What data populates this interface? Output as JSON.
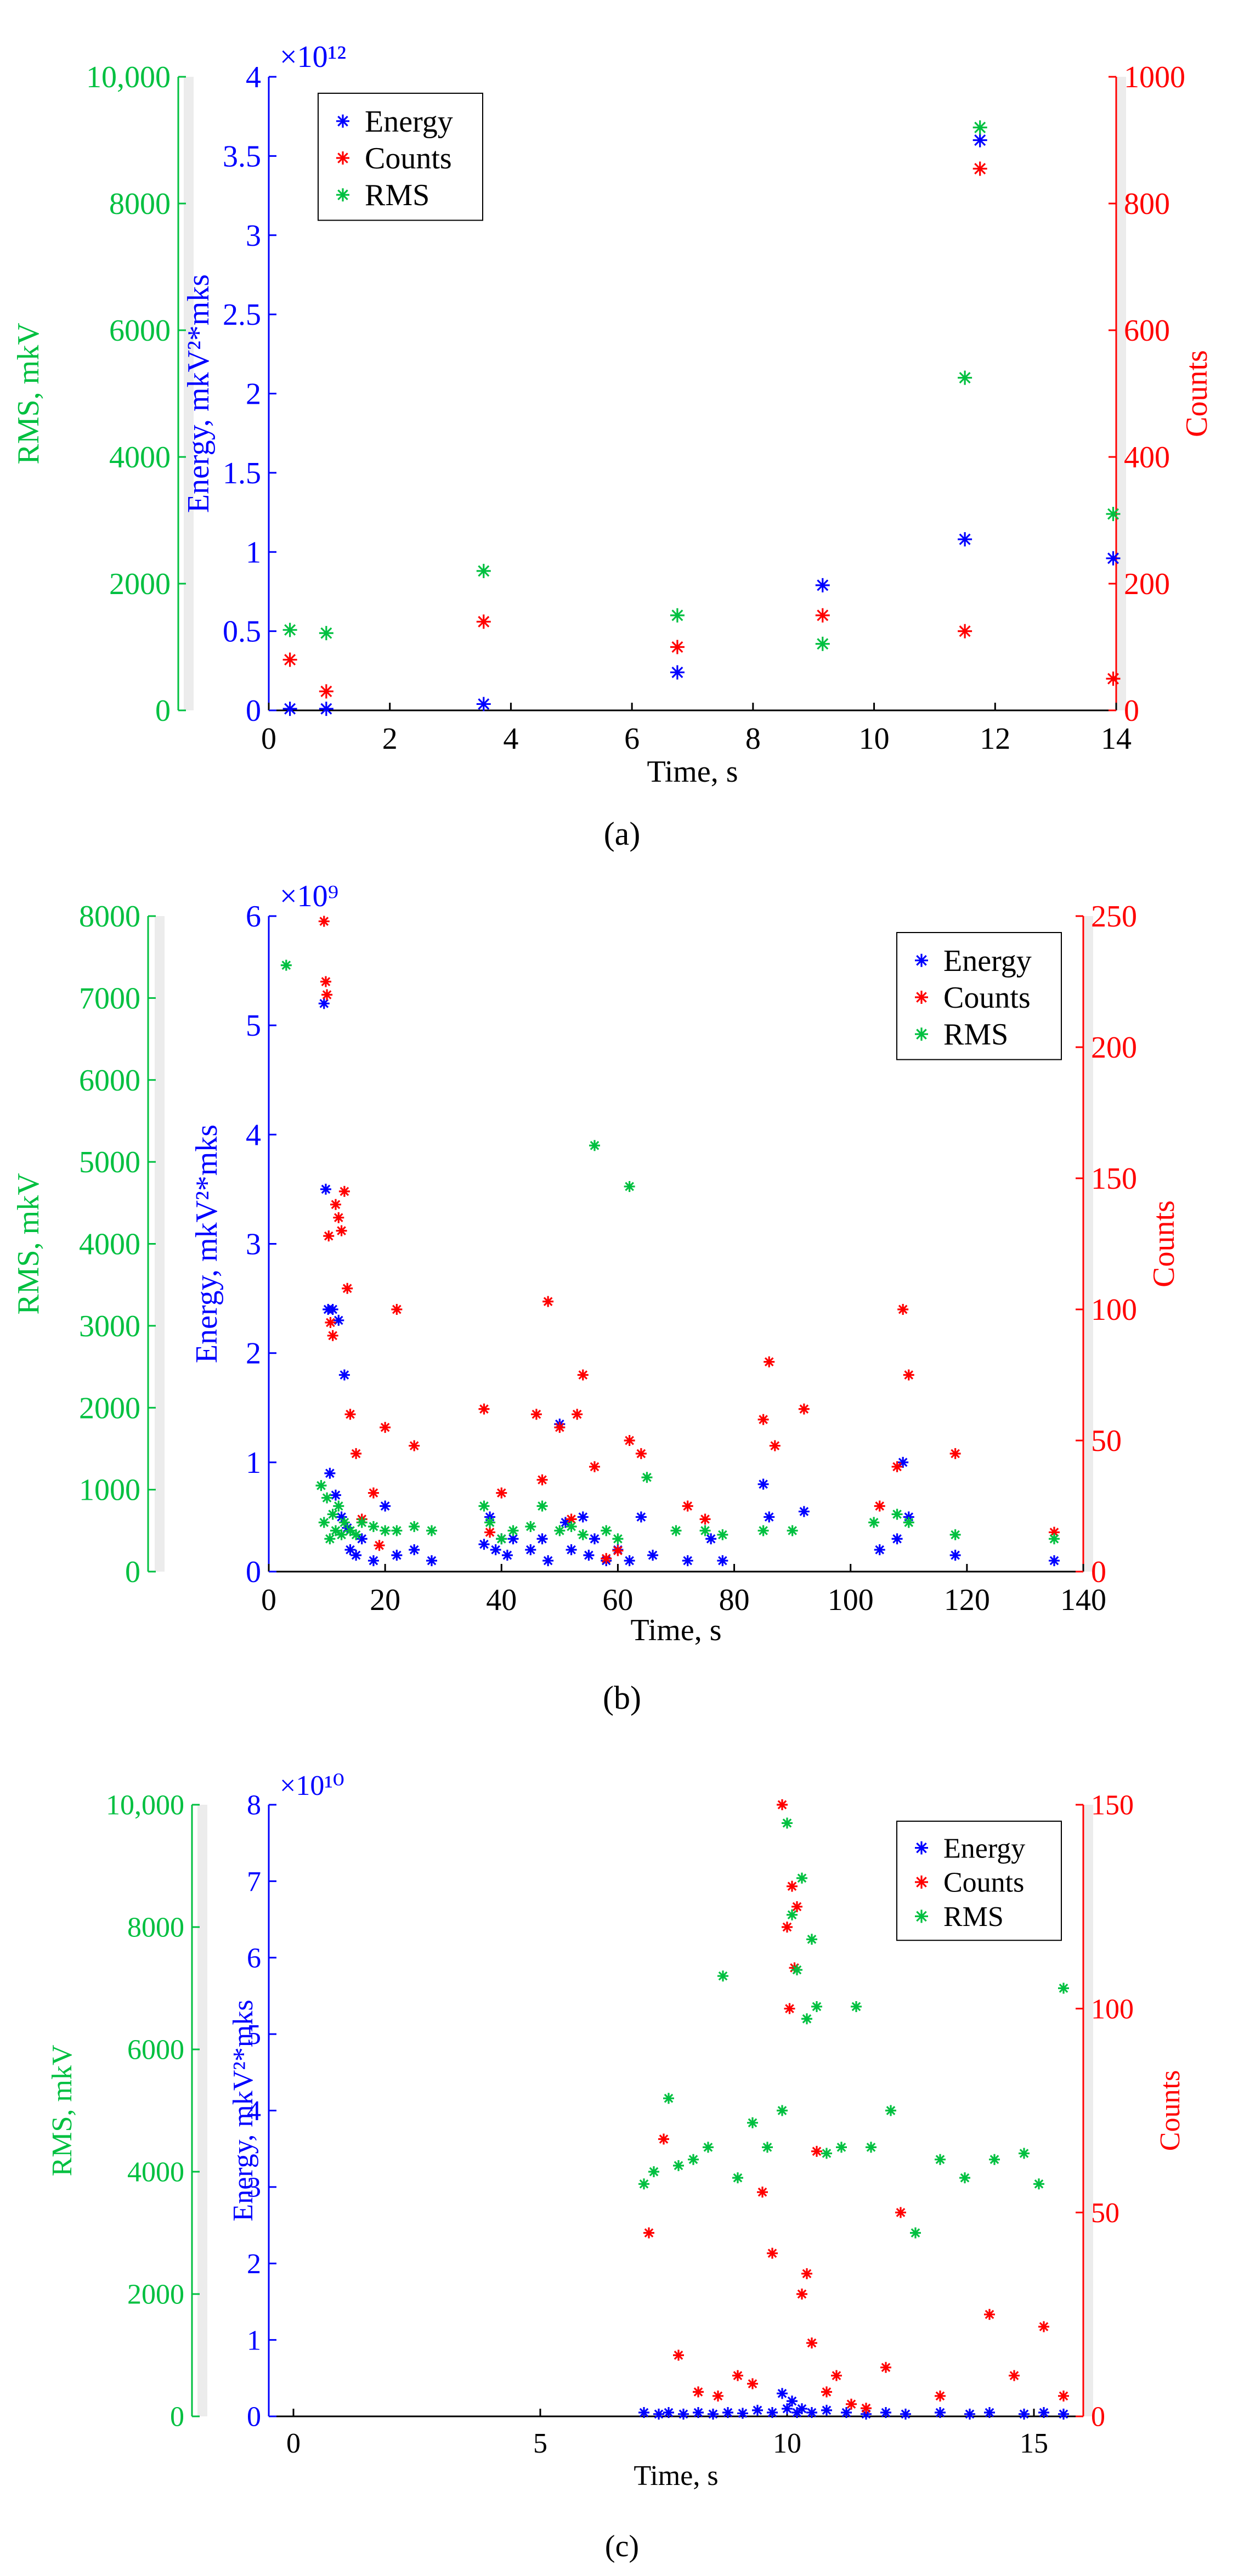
{
  "colors": {
    "energy": "#0000ff",
    "counts": "#ff0000",
    "rms": "#00c040",
    "axis": "#000000",
    "strip": "#ececec",
    "bg": "#ffffff"
  },
  "chart_data": [
    {
      "id": "a",
      "type": "scatter",
      "caption": "(a)",
      "xlabel": "Time, s",
      "xlim": [
        0,
        14
      ],
      "xticks": [
        "0",
        "2",
        "4",
        "6",
        "8",
        "10",
        "12",
        "14"
      ],
      "left_axis": {
        "label": "Energy, mkV²*mks",
        "ylim": [
          0,
          4
        ],
        "ticks": [
          "0",
          "0.5",
          "1",
          "1.5",
          "2",
          "2.5",
          "3",
          "3.5",
          "4"
        ],
        "exponent_label": "×10¹²"
      },
      "right_axis": {
        "label": "Counts",
        "ylim": [
          0,
          1000
        ],
        "ticks": [
          "0",
          "200",
          "400",
          "600",
          "800",
          "1000"
        ]
      },
      "outer_axis": {
        "label": "RMS, mkV",
        "ylim": [
          0,
          10000
        ],
        "ticks": [
          "0",
          "2000",
          "4000",
          "6000",
          "8000",
          "10,000"
        ]
      },
      "legend": [
        "Energy",
        "Counts",
        "RMS"
      ],
      "legend_position": "top-left",
      "series": [
        {
          "name": "Energy",
          "axis": "left",
          "x": [
            0.35,
            0.95,
            3.55,
            6.75,
            9.15,
            11.5,
            11.75,
            13.95
          ],
          "y": [
            0.01,
            0.01,
            0.04,
            0.24,
            0.79,
            1.08,
            3.6,
            0.96
          ]
        },
        {
          "name": "Counts",
          "axis": "right",
          "x": [
            0.35,
            0.95,
            3.55,
            6.75,
            9.15,
            11.5,
            11.75,
            13.95
          ],
          "y": [
            80,
            30,
            140,
            100,
            150,
            125,
            855,
            50
          ]
        },
        {
          "name": "RMS",
          "axis": "outer",
          "x": [
            0.35,
            0.95,
            3.55,
            6.75,
            9.15,
            11.5,
            11.75,
            13.95
          ],
          "y": [
            1270,
            1220,
            2200,
            1500,
            1050,
            5250,
            9200,
            3100
          ]
        }
      ]
    },
    {
      "id": "b",
      "type": "scatter",
      "caption": "(b)",
      "xlabel": "Time, s",
      "xlim": [
        0,
        140
      ],
      "xticks": [
        "0",
        "20",
        "40",
        "60",
        "80",
        "100",
        "120",
        "140"
      ],
      "left_axis": {
        "label": "Energy, mkV²*mks",
        "ylim": [
          0,
          6
        ],
        "ticks": [
          "0",
          "1",
          "2",
          "3",
          "4",
          "5",
          "6"
        ],
        "exponent_label": "×10⁹"
      },
      "right_axis": {
        "label": "Counts",
        "ylim": [
          0,
          250
        ],
        "ticks": [
          "0",
          "50",
          "100",
          "150",
          "200",
          "250"
        ]
      },
      "outer_axis": {
        "label": "RMS, mkV",
        "ylim": [
          0,
          8000
        ],
        "ticks": [
          "0",
          "1000",
          "2000",
          "3000",
          "4000",
          "5000",
          "6000",
          "7000",
          "8000"
        ]
      },
      "legend": [
        "Energy",
        "Counts",
        "RMS"
      ],
      "legend_position": "top-right",
      "series": [
        {
          "name": "Energy",
          "axis": "left",
          "x": [
            9.5,
            9.8,
            10.2,
            10.5,
            11,
            11.5,
            12,
            12.5,
            13,
            13.5,
            14,
            15,
            16,
            18,
            20,
            22,
            25,
            28,
            37,
            38,
            39,
            40,
            41,
            42,
            45,
            47,
            48,
            50,
            51,
            52,
            54,
            55,
            56,
            58,
            60,
            62,
            64,
            66,
            72,
            76,
            78,
            85,
            86,
            92,
            105,
            108,
            109,
            110,
            118,
            135
          ],
          "y": [
            5.2,
            3.5,
            2.4,
            0.9,
            2.4,
            0.7,
            2.3,
            0.5,
            1.8,
            0.4,
            0.2,
            0.15,
            0.3,
            0.1,
            0.6,
            0.15,
            0.2,
            0.1,
            0.25,
            0.5,
            0.2,
            0.3,
            0.15,
            0.3,
            0.2,
            0.3,
            0.1,
            1.35,
            0.45,
            0.2,
            0.5,
            0.15,
            0.3,
            0.1,
            0.2,
            0.1,
            0.5,
            0.15,
            0.1,
            0.3,
            0.1,
            0.8,
            0.5,
            0.55,
            0.2,
            0.3,
            1.0,
            0.5,
            0.15,
            0.1
          ]
        },
        {
          "name": "Counts",
          "axis": "right",
          "x": [
            9.5,
            9.8,
            10,
            10.3,
            10.6,
            11,
            11.5,
            12,
            12.5,
            13,
            13.5,
            14,
            15,
            16,
            18,
            19,
            20,
            22,
            25,
            37,
            38,
            40,
            46,
            47,
            48,
            50,
            52,
            53,
            54,
            56,
            58,
            60,
            62,
            64,
            72,
            75,
            85,
            86,
            87,
            92,
            105,
            108,
            109,
            110,
            118,
            135
          ],
          "y": [
            248,
            225,
            220,
            128,
            95,
            90,
            140,
            135,
            130,
            145,
            108,
            60,
            45,
            20,
            30,
            10,
            55,
            100,
            48,
            62,
            15,
            30,
            60,
            35,
            103,
            55,
            20,
            60,
            75,
            40,
            5,
            8,
            50,
            45,
            25,
            20,
            58,
            80,
            48,
            62,
            25,
            40,
            100,
            75,
            45,
            15
          ]
        },
        {
          "name": "RMS",
          "axis": "outer",
          "x": [
            3,
            9,
            9.5,
            10,
            10.5,
            11,
            11.5,
            12,
            12.5,
            13,
            14,
            15,
            16,
            18,
            20,
            22,
            25,
            28,
            37,
            38,
            40,
            42,
            45,
            47,
            50,
            52,
            54,
            56,
            58,
            60,
            62,
            65,
            70,
            75,
            78,
            85,
            90,
            104,
            108,
            110,
            118,
            135
          ],
          "y": [
            7400,
            1050,
            600,
            900,
            400,
            700,
            500,
            800,
            450,
            600,
            500,
            450,
            600,
            550,
            500,
            500,
            550,
            500,
            800,
            600,
            400,
            500,
            550,
            800,
            500,
            550,
            450,
            5200,
            500,
            400,
            4700,
            1150,
            500,
            500,
            450,
            500,
            500,
            600,
            700,
            600,
            450,
            400
          ]
        }
      ]
    },
    {
      "id": "c",
      "type": "scatter",
      "caption": "(c)",
      "xlabel": "Time, s",
      "xlim": [
        -0.5,
        16
      ],
      "xticks": [
        "0",
        "5",
        "10",
        "15"
      ],
      "left_axis": {
        "label": "Energy, mkV²*mks",
        "ylim": [
          0,
          8
        ],
        "ticks": [
          "0",
          "1",
          "2",
          "3",
          "4",
          "5",
          "6",
          "7",
          "8"
        ],
        "exponent_label": "×10¹⁰"
      },
      "right_axis": {
        "label": "Counts",
        "ylim": [
          0,
          150
        ],
        "ticks": [
          "0",
          "50",
          "100",
          "150"
        ]
      },
      "outer_axis": {
        "label": "RMS, mkV",
        "ylim": [
          0,
          10000
        ],
        "ticks": [
          "0",
          "2000",
          "4000",
          "6000",
          "8000",
          "10,000"
        ]
      },
      "legend": [
        "Energy",
        "Counts",
        "RMS"
      ],
      "legend_position": "top-right",
      "series": [
        {
          "name": "Energy",
          "axis": "left",
          "x": [
            7.1,
            7.4,
            7.6,
            7.9,
            8.2,
            8.5,
            8.8,
            9.1,
            9.4,
            9.7,
            9.9,
            10,
            10.1,
            10.2,
            10.3,
            10.5,
            10.8,
            11.2,
            11.6,
            12,
            12.4,
            13.1,
            13.7,
            14.1,
            14.8,
            15.2,
            15.6
          ],
          "y": [
            0.05,
            0.03,
            0.05,
            0.03,
            0.05,
            0.03,
            0.05,
            0.04,
            0.08,
            0.05,
            0.3,
            0.1,
            0.2,
            0.05,
            0.1,
            0.05,
            0.08,
            0.05,
            0.03,
            0.05,
            0.03,
            0.05,
            0.03,
            0.05,
            0.03,
            0.05,
            0.03
          ]
        },
        {
          "name": "Counts",
          "axis": "right",
          "x": [
            7.2,
            7.5,
            7.8,
            8.2,
            8.6,
            9.0,
            9.3,
            9.5,
            9.7,
            9.9,
            10.0,
            10.05,
            10.1,
            10.15,
            10.2,
            10.3,
            10.4,
            10.5,
            10.6,
            10.8,
            11.0,
            11.3,
            11.6,
            12.0,
            12.3,
            13.1,
            14.1,
            14.6,
            15.2,
            15.6
          ],
          "y": [
            45,
            68,
            15,
            6,
            5,
            10,
            8,
            55,
            40,
            150,
            120,
            100,
            130,
            110,
            125,
            30,
            35,
            18,
            65,
            6,
            10,
            3,
            2,
            12,
            50,
            5,
            25,
            10,
            22,
            5
          ]
        },
        {
          "name": "RMS",
          "axis": "outer",
          "x": [
            7.1,
            7.3,
            7.6,
            7.8,
            8.1,
            8.4,
            8.7,
            9.0,
            9.3,
            9.6,
            9.9,
            10.0,
            10.1,
            10.2,
            10.3,
            10.4,
            10.5,
            10.6,
            10.8,
            11.1,
            11.4,
            11.7,
            12.1,
            12.6,
            13.1,
            13.6,
            14.2,
            14.8,
            15.1,
            15.6
          ],
          "y": [
            3800,
            4000,
            5200,
            4100,
            4200,
            4400,
            7200,
            3900,
            4800,
            4400,
            5000,
            9700,
            8200,
            7300,
            8800,
            6500,
            7800,
            6700,
            4300,
            4400,
            6700,
            4400,
            5000,
            3000,
            4200,
            3900,
            4200,
            4300,
            3800,
            7000
          ]
        }
      ]
    }
  ]
}
